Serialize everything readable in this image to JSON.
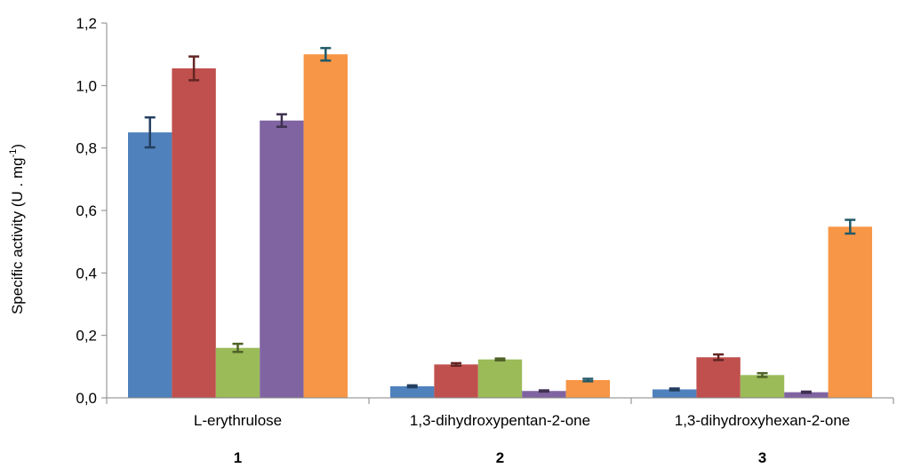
{
  "chart_data": {
    "type": "bar",
    "ylabel_main": "Specific activity (U . mg",
    "ylabel_sup": "-1",
    "ylabel_close": ")",
    "ylim": [
      0,
      1.2
    ],
    "yticks": [
      "0,0",
      "0,2",
      "0,4",
      "0,6",
      "0,8",
      "1,0",
      "1,2"
    ],
    "ytick_values": [
      0,
      0.2,
      0.4,
      0.6,
      0.8,
      1.0,
      1.2
    ],
    "grid": false,
    "categories": [
      "L-erythrulose",
      "1,3-dihydroxypentan-2-one",
      "1,3-dihydroxyhexan-2-one"
    ],
    "category_numbers": [
      "1",
      "2",
      "3"
    ],
    "series": [
      {
        "color": "#4F81BD",
        "error_color": "#243F60",
        "values": [
          0.85,
          0.037,
          0.027
        ],
        "errors": [
          0.048,
          0.003,
          0.003
        ]
      },
      {
        "color": "#C0504D",
        "error_color": "#632523",
        "values": [
          1.055,
          0.107,
          0.13
        ],
        "errors": [
          0.038,
          0.004,
          0.009
        ]
      },
      {
        "color": "#9BBB59",
        "error_color": "#4F6228",
        "values": [
          0.16,
          0.123,
          0.073
        ],
        "errors": [
          0.013,
          0.003,
          0.006
        ]
      },
      {
        "color": "#8064A2",
        "error_color": "#3F3151",
        "values": [
          0.888,
          0.022,
          0.018
        ],
        "errors": [
          0.02,
          0.002,
          0.002
        ]
      },
      {
        "color": "#F79646",
        "error_color": "#215968",
        "values": [
          1.1,
          0.057,
          0.548
        ],
        "errors": [
          0.02,
          0.004,
          0.022
        ]
      }
    ]
  }
}
